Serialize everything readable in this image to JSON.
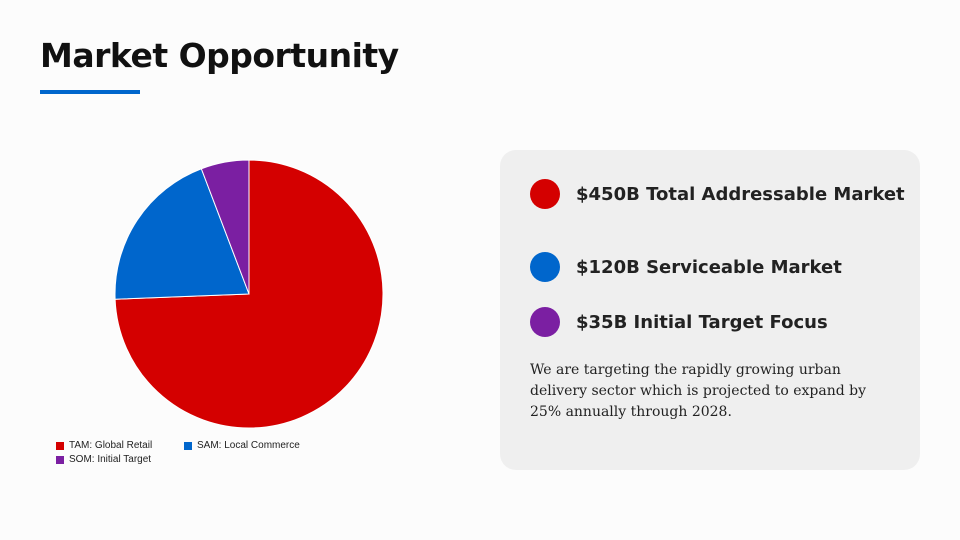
{
  "title": "Market Opportunity",
  "accent": "#0066cc",
  "chart_data": {
    "type": "pie",
    "categories": [
      "TAM: Global Retail",
      "SAM: Local Commerce",
      "SOM: Initial Target"
    ],
    "values": [
      450,
      120,
      35
    ],
    "colors": [
      "#d40000",
      "#0066cc",
      "#7b1fa2"
    ],
    "legend_position": "bottom"
  },
  "panel": {
    "items": [
      {
        "label": "$450B Total Addressable Market",
        "color": "#d40000"
      },
      {
        "label": "$120B Serviceable Market",
        "color": "#0066cc"
      },
      {
        "label": "$35B Initial Target Focus",
        "color": "#7b1fa2"
      }
    ],
    "description": "We are targeting the rapidly growing urban delivery sector which is projected to expand by 25% annually through 2028."
  }
}
